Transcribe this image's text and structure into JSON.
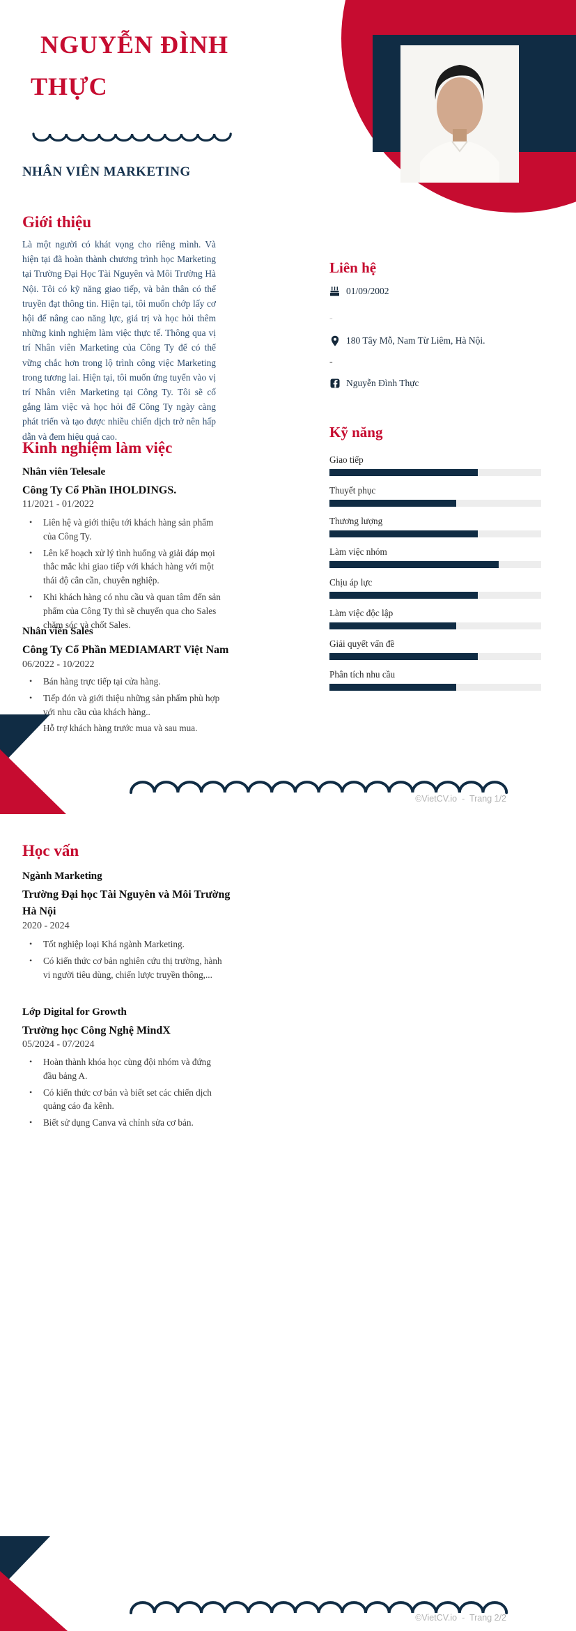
{
  "header": {
    "name_line1": "NGUYỄN ĐÌNH",
    "name_line2": "THỰC",
    "job_title": "NHÂN VIÊN MARKETING"
  },
  "colors": {
    "accent_red": "#C60C30",
    "navy": "#102C44",
    "intro_text": "#2F4D6E",
    "skill_track": "#EDEDED",
    "footer_gray": "#B3B3B3"
  },
  "intro": {
    "heading": "Giới thiệu",
    "text": "Là một người có khát vọng cho riêng mình. Và hiện tại đã hoàn thành chương trình học Marketing tại Trường Đại Học Tài Nguyên và Môi Trường Hà Nội. Tôi có kỹ năng giao tiếp, và bản thân có thể truyền đạt thông tin. Hiện tại, tôi muốn chớp lấy cơ hội để nâng cao năng lực, giá trị và học hỏi thêm những kinh nghiệm làm việc thực tế. Thông qua vị trí Nhân viên Marketing của Công Ty để có thể vững chắc hơn trong lộ trình công việc Marketing trong tương lai. Hiện tại, tôi muốn ứng tuyển vào vị trí Nhân viên Marketing tại Công Ty. Tôi sẽ cố gắng làm việc và học hỏi để Công Ty ngày càng phát triển và tạo được nhiều chiến dịch trở nên hấp dẫn và đem hiệu quả cao."
  },
  "experience": {
    "heading": "Kinh nghiệm làm việc",
    "jobs": [
      {
        "title": "Nhân viên Telesale",
        "company": "Công Ty Cổ Phần IHOLDINGS.",
        "period": "11/2021 - 01/2022",
        "bullets": [
          "Liên hệ và giới thiệu tới khách hàng sản phẩm của Công Ty.",
          "Lên kế hoạch xử lý tình huống và giải đáp mọi thắc mắc khi giao tiếp với khách hàng với một thái độ cân cần, chuyên nghiệp.",
          "Khi khách hàng có nhu cầu và quan tâm đến sản phẩm của Công Ty thì sẽ chuyển qua cho Sales chăm sóc và chốt Sales."
        ]
      },
      {
        "title": "Nhân viên Sales",
        "company": "Công Ty Cổ Phần MEDIAMART Việt Nam",
        "period": "06/2022 - 10/2022",
        "bullets": [
          "Bán hàng trực tiếp tại cửa hàng.",
          "Tiếp đón và giới thiệu những sản phẩm phù hợp với nhu cầu của khách hàng..",
          "Hỗ trợ khách hàng trước mua và sau mua."
        ]
      }
    ]
  },
  "contact": {
    "heading": "Liên hệ",
    "birthday": "01/09/2002",
    "empty_field_1": "-",
    "address": "180 Tây Mỗ, Nam Từ Liêm, Hà Nội.",
    "empty_field_2": "-",
    "facebook": "Nguyễn Đình Thực"
  },
  "skills": {
    "heading": "Kỹ năng",
    "items": [
      {
        "label": "Giao tiếp",
        "level": 70
      },
      {
        "label": "Thuyết phục",
        "level": 60
      },
      {
        "label": "Thương lượng",
        "level": 70
      },
      {
        "label": "Làm việc nhóm",
        "level": 80
      },
      {
        "label": "Chịu áp lực",
        "level": 70
      },
      {
        "label": "Làm việc độc lập",
        "level": 60
      },
      {
        "label": "Giải quyết vấn đề",
        "level": 70
      },
      {
        "label": "Phân tích nhu cầu",
        "level": 60
      }
    ]
  },
  "education": {
    "heading": "Học vấn",
    "entries": [
      {
        "title": "Ngành Marketing",
        "school": "Trường Đại học Tài Nguyên và Môi Trường Hà Nội",
        "period": "2020 - 2024",
        "bullets": [
          "Tốt nghiệp loại Khá ngành Marketing.",
          "Có kiến thức cơ bản nghiên cứu thị trường, hành vi người tiêu dùng, chiến lược truyền thông,..."
        ]
      },
      {
        "title": "Lớp Digital for Growth",
        "school": "Trường học Công Nghệ MindX",
        "period": "05/2024 - 07/2024",
        "bullets": [
          "Hoàn thành khóa học cùng đội nhóm và đứng đầu bảng A.",
          " Có kiến thức cơ bản và biết set các chiến dịch quảng cáo đa kênh.",
          "Biết sử dụng Canva và chỉnh sửa cơ bản."
        ]
      }
    ]
  },
  "footer": {
    "page1": "©VietCV.io  -  Trang 1/2",
    "page2": "©VietCV.io  -  Trang 2/2"
  }
}
